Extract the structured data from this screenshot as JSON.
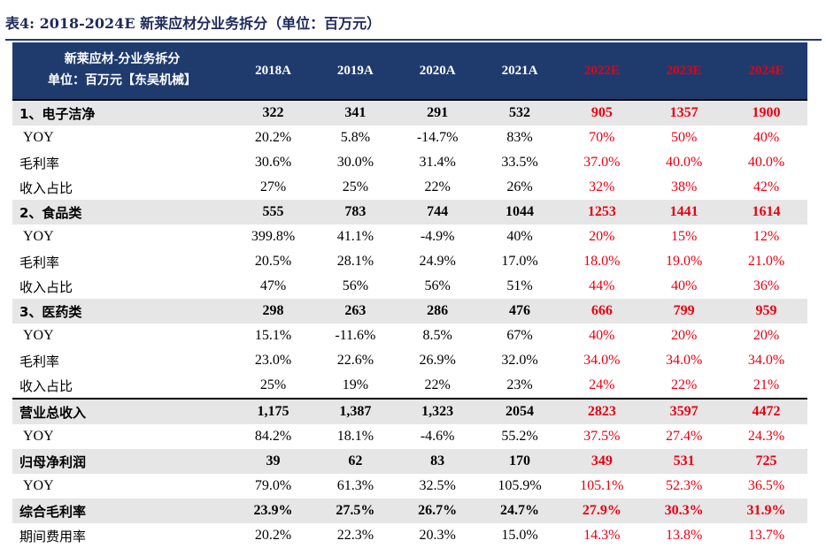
{
  "caption": "表4: 2018-2024E 新莱应材分业务拆分（单位：百万元）",
  "header": {
    "label_line1": "新莱应材-分业务拆分",
    "label_line2": "单位：百万元【东吴机械】",
    "years": [
      {
        "label": "2018A",
        "estimate": false
      },
      {
        "label": "2019A",
        "estimate": false
      },
      {
        "label": "2020A",
        "estimate": false
      },
      {
        "label": "2021A",
        "estimate": false
      },
      {
        "label": "2022E",
        "estimate": true
      },
      {
        "label": "2023E",
        "estimate": true
      },
      {
        "label": "2024E",
        "estimate": true
      }
    ]
  },
  "colors": {
    "header_bg": "#1f3b6e",
    "estimate_text": "#e60012",
    "section_bg": "#e6e6e6",
    "caption_text": "#1f2a5a"
  },
  "rows": [
    {
      "label": "1、电子洁净",
      "type": "section",
      "values": [
        "322",
        "341",
        "291",
        "532",
        "905",
        "1357",
        "1900"
      ]
    },
    {
      "label": "YOY",
      "type": "detail",
      "values": [
        "20.2%",
        "5.8%",
        "-14.7%",
        "83%",
        "70%",
        "50%",
        "40%"
      ]
    },
    {
      "label": "毛利率",
      "type": "detail",
      "values": [
        "30.6%",
        "30.0%",
        "31.4%",
        "33.5%",
        "37.0%",
        "40.0%",
        "40.0%"
      ]
    },
    {
      "label": "收入占比",
      "type": "detail",
      "values": [
        "27%",
        "25%",
        "22%",
        "26%",
        "32%",
        "38%",
        "42%"
      ]
    },
    {
      "label": "2、食品类",
      "type": "section",
      "values": [
        "555",
        "783",
        "744",
        "1044",
        "1253",
        "1441",
        "1614"
      ]
    },
    {
      "label": "YOY",
      "type": "detail",
      "values": [
        "399.8%",
        "41.1%",
        "-4.9%",
        "40%",
        "20%",
        "15%",
        "12%"
      ]
    },
    {
      "label": "毛利率",
      "type": "detail",
      "values": [
        "20.5%",
        "28.1%",
        "24.9%",
        "17.0%",
        "18.0%",
        "19.0%",
        "21.0%"
      ]
    },
    {
      "label": "收入占比",
      "type": "detail",
      "values": [
        "47%",
        "56%",
        "56%",
        "51%",
        "44%",
        "40%",
        "36%"
      ]
    },
    {
      "label": "3、医药类",
      "type": "section",
      "values": [
        "298",
        "263",
        "286",
        "476",
        "666",
        "799",
        "959"
      ]
    },
    {
      "label": "YOY",
      "type": "detail",
      "values": [
        "15.1%",
        "-11.6%",
        "8.5%",
        "67%",
        "40%",
        "20%",
        "20%"
      ]
    },
    {
      "label": "毛利率",
      "type": "detail",
      "values": [
        "23.0%",
        "22.6%",
        "26.9%",
        "32.0%",
        "34.0%",
        "34.0%",
        "34.0%"
      ]
    },
    {
      "label": "收入占比",
      "type": "detail",
      "values": [
        "25%",
        "19%",
        "22%",
        "23%",
        "24%",
        "22%",
        "21%"
      ]
    },
    {
      "label": "营业总收入",
      "type": "section",
      "values": [
        "1,175",
        "1,387",
        "1,323",
        "2054",
        "2823",
        "3597",
        "4472"
      ]
    },
    {
      "label": "YOY",
      "type": "detail",
      "values": [
        "84.2%",
        "18.1%",
        "-4.6%",
        "55.2%",
        "37.5%",
        "27.4%",
        "24.3%"
      ]
    },
    {
      "label": "归母净利润",
      "type": "section",
      "values": [
        "39",
        "62",
        "83",
        "170",
        "349",
        "531",
        "725"
      ]
    },
    {
      "label": "YOY",
      "type": "detail",
      "values": [
        "79.0%",
        "61.3%",
        "32.5%",
        "105.9%",
        "105.1%",
        "52.3%",
        "36.5%"
      ]
    },
    {
      "label": "综合毛利率",
      "type": "section",
      "values": [
        "23.9%",
        "27.5%",
        "26.7%",
        "24.7%",
        "27.9%",
        "30.3%",
        "31.9%"
      ]
    },
    {
      "label": "期间费用率",
      "type": "detail",
      "values": [
        "20.2%",
        "22.3%",
        "20.3%",
        "15.0%",
        "14.3%",
        "13.8%",
        "13.7%"
      ]
    }
  ]
}
